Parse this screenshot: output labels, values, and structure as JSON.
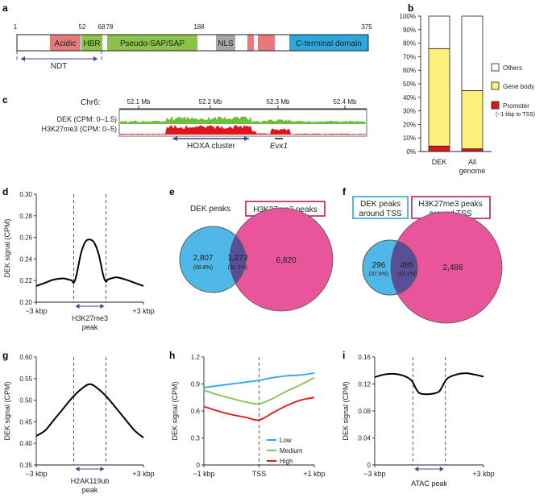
{
  "panel_a": {
    "label": "a",
    "positions": [
      "1",
      "52",
      "68",
      "78",
      "188",
      "375"
    ],
    "domains": [
      "Acidic",
      "HBR",
      "Pseudo-SAP/SAP",
      "NLS",
      "C-terminal domain"
    ],
    "ndt_label": "NDT",
    "colors": {
      "acidic": "#E8797B",
      "hbr": "#8BC34A",
      "sap": "#8BC34A",
      "nls": "#A6A6A6",
      "ctd": "#29A8E0",
      "pink": "#E8797B"
    }
  },
  "panel_b": {
    "label": "b",
    "chart_data": {
      "type": "bar",
      "stacked": true,
      "categories": [
        "DEK",
        "All genome"
      ],
      "category_lines": [
        [
          "DEK"
        ],
        [
          "All",
          "genome"
        ]
      ],
      "series": [
        {
          "name": "Promoter (−1 kbp to TSS)",
          "name_lines": [
            "Promoter",
            "(−1 kbp to TSS)"
          ],
          "color": "#E0141B",
          "values": [
            4,
            2
          ]
        },
        {
          "name": "Gene body",
          "color": "#FAF07A",
          "values": [
            72,
            43
          ]
        },
        {
          "name": "Others",
          "color": "#FFFFFF",
          "values": [
            24,
            55
          ]
        }
      ],
      "legend_order": [
        "Others",
        "Gene body",
        "Promoter (−1 kbp to TSS)"
      ],
      "ylim": [
        0,
        100
      ],
      "yticks": [
        "0%",
        "10%",
        "20%",
        "30%",
        "40%",
        "50%",
        "60%",
        "70%",
        "80%",
        "90%",
        "100%"
      ]
    }
  },
  "panel_c": {
    "label": "c",
    "chrom": "Chr6:",
    "ticks": [
      "52.1 Mb",
      "52.2 Mb",
      "52.3 Mb",
      "52.4 Mb"
    ],
    "tracks": [
      "DEK (CPM: 0–1.5)",
      "H3K27me3 (CPM: 0–5)"
    ],
    "cluster_label": "HOXA cluster",
    "gene_label": "Evx1",
    "colors": {
      "dek": "#6BBF3A",
      "h3k": "#E0141B",
      "arrow": "#3B4A8C"
    }
  },
  "panel_d": {
    "label": "d",
    "chart_data": {
      "type": "line",
      "ylabel": "DEK signal (CPM)",
      "ylim": [
        0.2,
        0.3
      ],
      "yticks": [
        "0.20",
        "0.22",
        "0.24",
        "0.26",
        "0.28",
        "0.30"
      ],
      "xlim": [
        -3,
        3
      ],
      "xtick_left": "−3 kbp",
      "xtick_right": "+3 kbp",
      "x": [
        -3,
        -2.5,
        -2,
        -1.5,
        -1.2,
        -1.0,
        -0.9,
        -0.75,
        -0.5,
        -0.25,
        0,
        0.25,
        0.5,
        0.75,
        0.9,
        1.0,
        1.2,
        1.5,
        2,
        2.5,
        3
      ],
      "y": [
        0.215,
        0.218,
        0.221,
        0.222,
        0.221,
        0.22,
        0.218,
        0.225,
        0.245,
        0.256,
        0.258,
        0.255,
        0.244,
        0.225,
        0.219,
        0.221,
        0.222,
        0.223,
        0.221,
        0.218,
        0.215
      ],
      "region": [
        -0.9,
        0.9
      ],
      "region_label_lines": [
        "H3K27me3",
        "peak"
      ]
    }
  },
  "panel_e": {
    "label": "e",
    "left_title": "DEK peaks",
    "right_title": "H3K27me3 peaks",
    "left_only": "2,807",
    "left_pct": "(68.8%)",
    "overlap": "1,273",
    "overlap_pct": "(31.2%)",
    "right_only": "6,820",
    "colors": {
      "blue": "#4FB8E8",
      "pink": "#E8559A",
      "overlap": "#5A4E96"
    }
  },
  "panel_f": {
    "label": "f",
    "left_title_lines": [
      "DEK peaks",
      "around TSS"
    ],
    "right_title_lines": [
      "H3K27me3 peaks",
      "around TSS"
    ],
    "left_only": "296",
    "left_pct": "(37.9%)",
    "overlap": "485",
    "overlap_pct": "(62.1%)",
    "right_only": "2,488"
  },
  "panel_g": {
    "label": "g",
    "chart_data": {
      "type": "line",
      "ylabel": "DEK signal (CPM)",
      "ylim": [
        0.35,
        0.6
      ],
      "yticks": [
        "0.35",
        "0.40",
        "0.45",
        "0.50",
        "0.55",
        "0.60"
      ],
      "xlim": [
        -3,
        3
      ],
      "xtick_left": "−3 kbp",
      "xtick_right": "+3 kbp",
      "x": [
        -3,
        -2.5,
        -2,
        -1.5,
        -1.0,
        -0.5,
        0,
        0.5,
        1.0,
        1.5,
        2,
        2.5,
        3
      ],
      "y": [
        0.417,
        0.43,
        0.455,
        0.48,
        0.505,
        0.525,
        0.537,
        0.525,
        0.505,
        0.48,
        0.455,
        0.43,
        0.413
      ],
      "region": [
        -0.9,
        0.9
      ],
      "region_label_lines": [
        "H2AK119ub",
        "peak"
      ]
    }
  },
  "panel_h": {
    "label": "h",
    "chart_data": {
      "type": "line",
      "ylabel": "DEK signal (CPM)",
      "ylim": [
        0,
        1.2
      ],
      "yticks": [
        "0",
        "0.3",
        "0.6",
        "0.9",
        "1.2"
      ],
      "xlim": [
        -1,
        1
      ],
      "xtick_labels": [
        "−1 kbp",
        "TSS",
        "+1 kbp"
      ],
      "x": [
        -1,
        -0.75,
        -0.5,
        -0.25,
        0,
        0.25,
        0.5,
        0.75,
        1
      ],
      "series": [
        {
          "name": "Low",
          "color": "#29A8E0",
          "values": [
            0.86,
            0.88,
            0.9,
            0.92,
            0.94,
            0.97,
            0.99,
            1.0,
            1.02
          ]
        },
        {
          "name": "Medium",
          "color": "#8BC34A",
          "values": [
            0.83,
            0.78,
            0.74,
            0.7,
            0.68,
            0.74,
            0.82,
            0.89,
            0.97
          ]
        },
        {
          "name": "High",
          "color": "#E0141B",
          "values": [
            0.65,
            0.6,
            0.56,
            0.53,
            0.5,
            0.58,
            0.66,
            0.72,
            0.75
          ]
        }
      ]
    }
  },
  "panel_i": {
    "label": "i",
    "chart_data": {
      "type": "line",
      "ylabel": "DEK signal (CPM)",
      "ylim": [
        0,
        0.16
      ],
      "yticks": [
        "0",
        "0.04",
        "0.08",
        "0.12",
        "0.16"
      ],
      "xlim": [
        -3,
        3
      ],
      "xtick_left": "−3 kbp",
      "xtick_right": "+3 kbp",
      "x": [
        -3,
        -2.5,
        -2,
        -1.5,
        -1.0,
        -0.7,
        -0.5,
        0,
        0.5,
        0.7,
        1.0,
        1.5,
        2,
        2.5,
        3
      ],
      "y": [
        0.13,
        0.134,
        0.135,
        0.133,
        0.126,
        0.112,
        0.106,
        0.105,
        0.108,
        0.115,
        0.128,
        0.134,
        0.136,
        0.134,
        0.131
      ],
      "region": [
        -0.9,
        0.9
      ],
      "region_label_lines": [
        "ATAC peak"
      ]
    }
  }
}
